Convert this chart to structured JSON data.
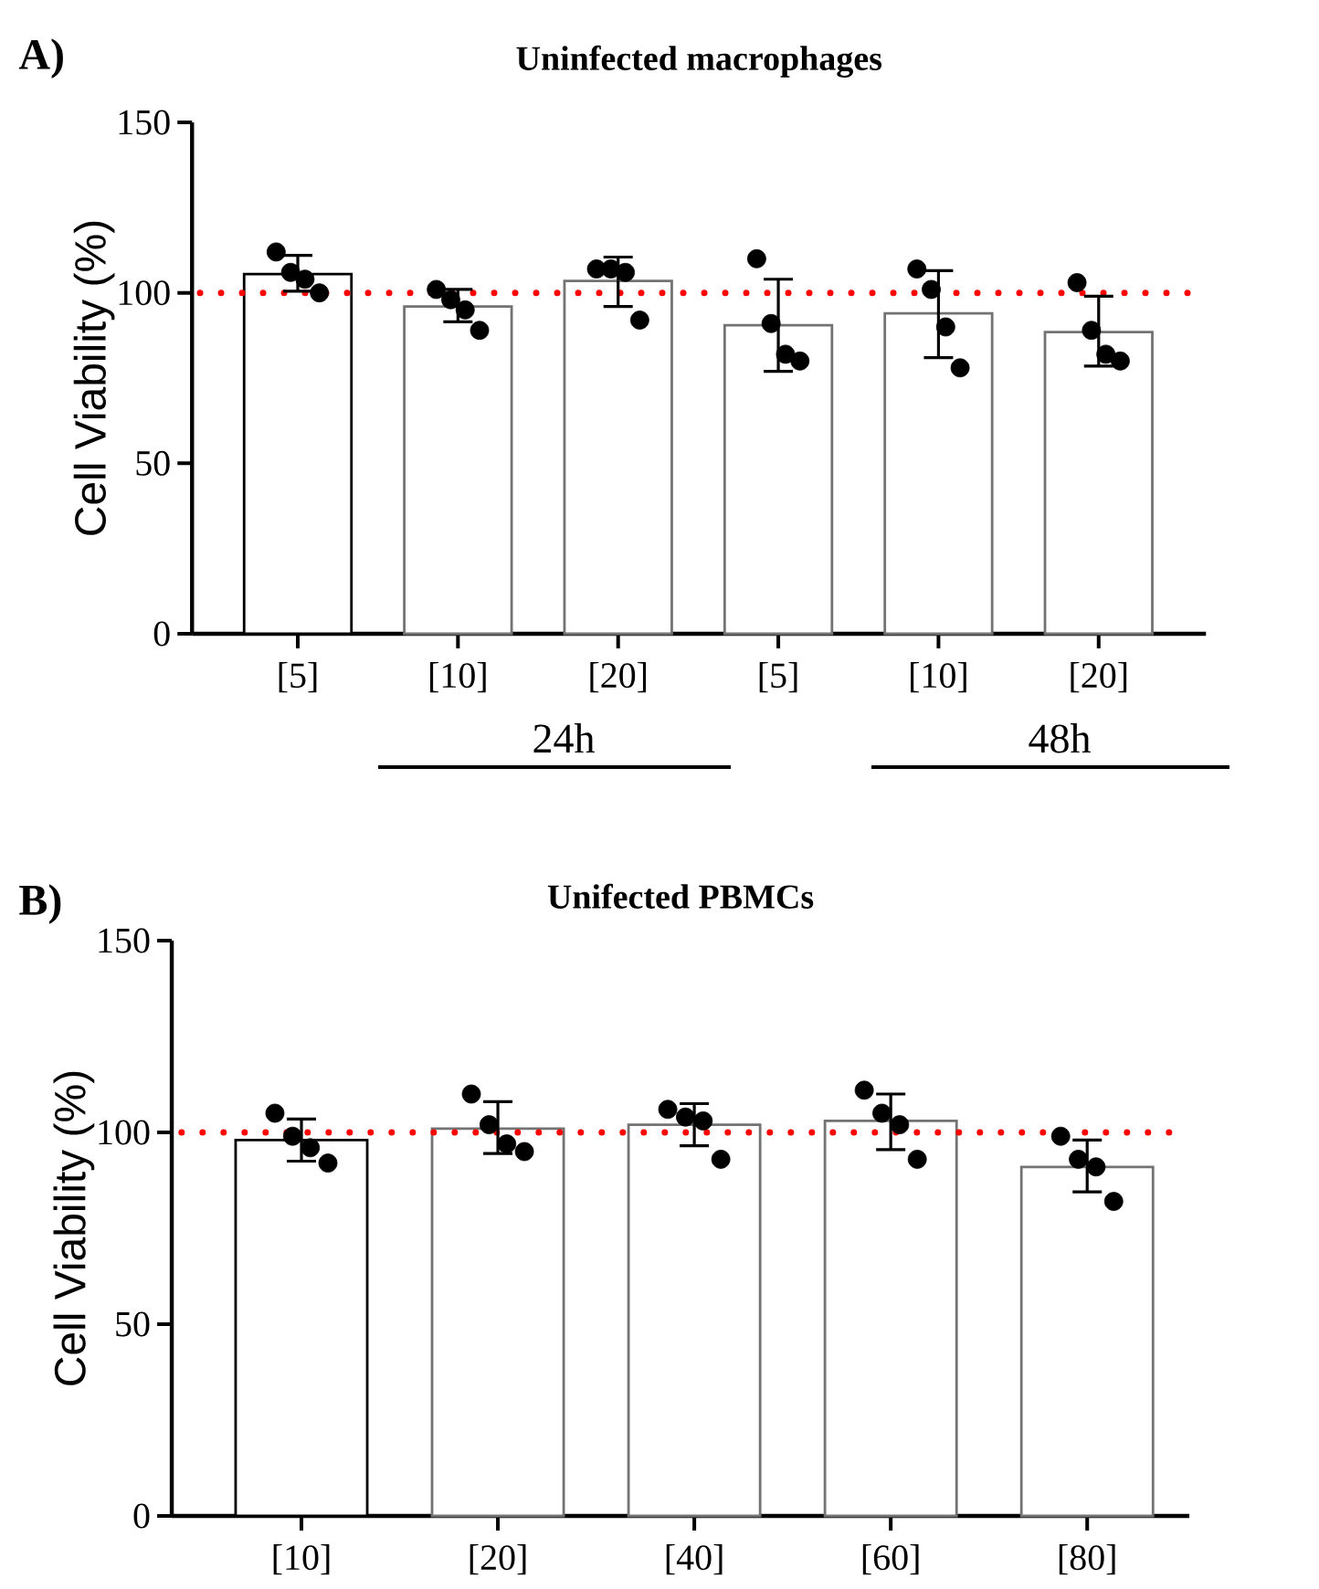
{
  "chart_data": [
    {
      "type": "bar",
      "title": "Uninfected macrophages",
      "ylabel": "Cell Viability (%)",
      "categories": [
        "[5]",
        "[10]",
        "[20]",
        "[5]",
        "[10]",
        "[20]"
      ],
      "ylim": [
        0,
        150
      ],
      "yticks": [
        0,
        50,
        100,
        150
      ],
      "series": [
        {
          "type": "bar",
          "color": "#ffffff",
          "values": [
            105.5,
            96,
            103.5,
            90.5,
            94,
            88.5
          ],
          "errors": [
            [
              100.5,
              111
            ],
            [
              91.5,
              101
            ],
            [
              96,
              110.5
            ],
            [
              77,
              104
            ],
            [
              81,
              106.5
            ],
            [
              78.5,
              99
            ]
          ]
        },
        {
          "type": "scatter",
          "color": "#000000",
          "values": [
            112,
            101,
            107,
            110,
            107,
            103
          ]
        },
        {
          "type": "scatter",
          "color": "#000000",
          "values": [
            106,
            98,
            107,
            91,
            101,
            89
          ]
        },
        {
          "type": "scatter",
          "color": "#000000",
          "values": [
            104,
            95,
            106,
            82,
            90,
            82
          ]
        },
        {
          "type": "scatter",
          "color": "#000000",
          "values": [
            100,
            89,
            92,
            80,
            78,
            80
          ]
        }
      ],
      "ref_lines": [
        {
          "axis": "y",
          "value": 100,
          "color": "#ff0000",
          "line_style": "dotted"
        }
      ],
      "annotations": [
        "A)",
        "24h",
        "48h"
      ]
    },
    {
      "type": "bar",
      "title": "Unifected PBMCs",
      "ylabel": "Cell Viability (%)",
      "categories": [
        "[10]",
        "[20]",
        "[40]",
        "[60]",
        "[80]"
      ],
      "ylim": [
        0,
        150
      ],
      "yticks": [
        0,
        50,
        100,
        150
      ],
      "series": [
        {
          "type": "bar",
          "color": "#ffffff",
          "values": [
            98,
            101,
            102,
            103,
            91
          ],
          "errors": [
            [
              92.5,
              103.5
            ],
            [
              94.5,
              108
            ],
            [
              96.5,
              107.5
            ],
            [
              95.5,
              110
            ],
            [
              84.5,
              98
            ]
          ]
        },
        {
          "type": "scatter",
          "color": "#000000",
          "values": [
            105,
            110,
            106,
            111,
            99
          ]
        },
        {
          "type": "scatter",
          "color": "#000000",
          "values": [
            99,
            102,
            104,
            105,
            93
          ]
        },
        {
          "type": "scatter",
          "color": "#000000",
          "values": [
            96,
            97,
            103,
            102,
            91
          ]
        },
        {
          "type": "scatter",
          "color": "#000000",
          "values": [
            92,
            95,
            93,
            93,
            82
          ]
        }
      ],
      "ref_lines": [
        {
          "axis": "y",
          "value": 100,
          "color": "#ff0000",
          "line_style": "dotted"
        }
      ],
      "annotations": [
        "B)"
      ]
    }
  ]
}
